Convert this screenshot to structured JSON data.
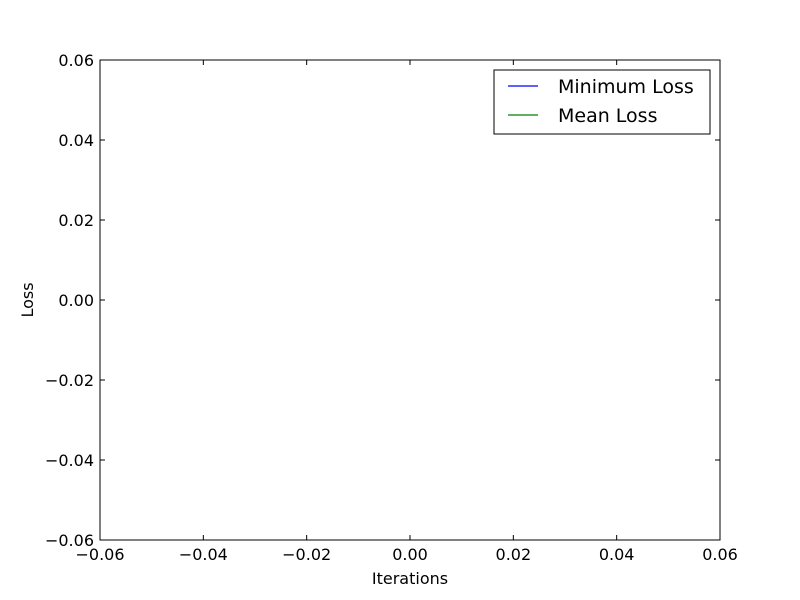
{
  "chart_data": {
    "type": "line",
    "title": "",
    "xlabel": "Iterations",
    "ylabel": "Loss",
    "xlim": [
      -0.06,
      0.06
    ],
    "ylim": [
      -0.06,
      0.06
    ],
    "x_ticks": [
      -0.06,
      -0.04,
      -0.02,
      0.0,
      0.02,
      0.04,
      0.06
    ],
    "y_ticks": [
      -0.06,
      -0.04,
      -0.02,
      0.0,
      0.02,
      0.04,
      0.06
    ],
    "x_tick_labels": [
      "−0.06",
      "−0.04",
      "−0.02",
      "0.00",
      "0.02",
      "0.04",
      "0.06"
    ],
    "y_tick_labels": [
      "−0.06",
      "−0.04",
      "−0.02",
      "0.00",
      "0.02",
      "0.04",
      "0.06"
    ],
    "grid": false,
    "legend_position": "top-right",
    "series": [
      {
        "name": "Minimum Loss",
        "color": "#0000ff",
        "x": [],
        "y": []
      },
      {
        "name": "Mean Loss",
        "color": "#008000",
        "x": [],
        "y": []
      }
    ]
  }
}
